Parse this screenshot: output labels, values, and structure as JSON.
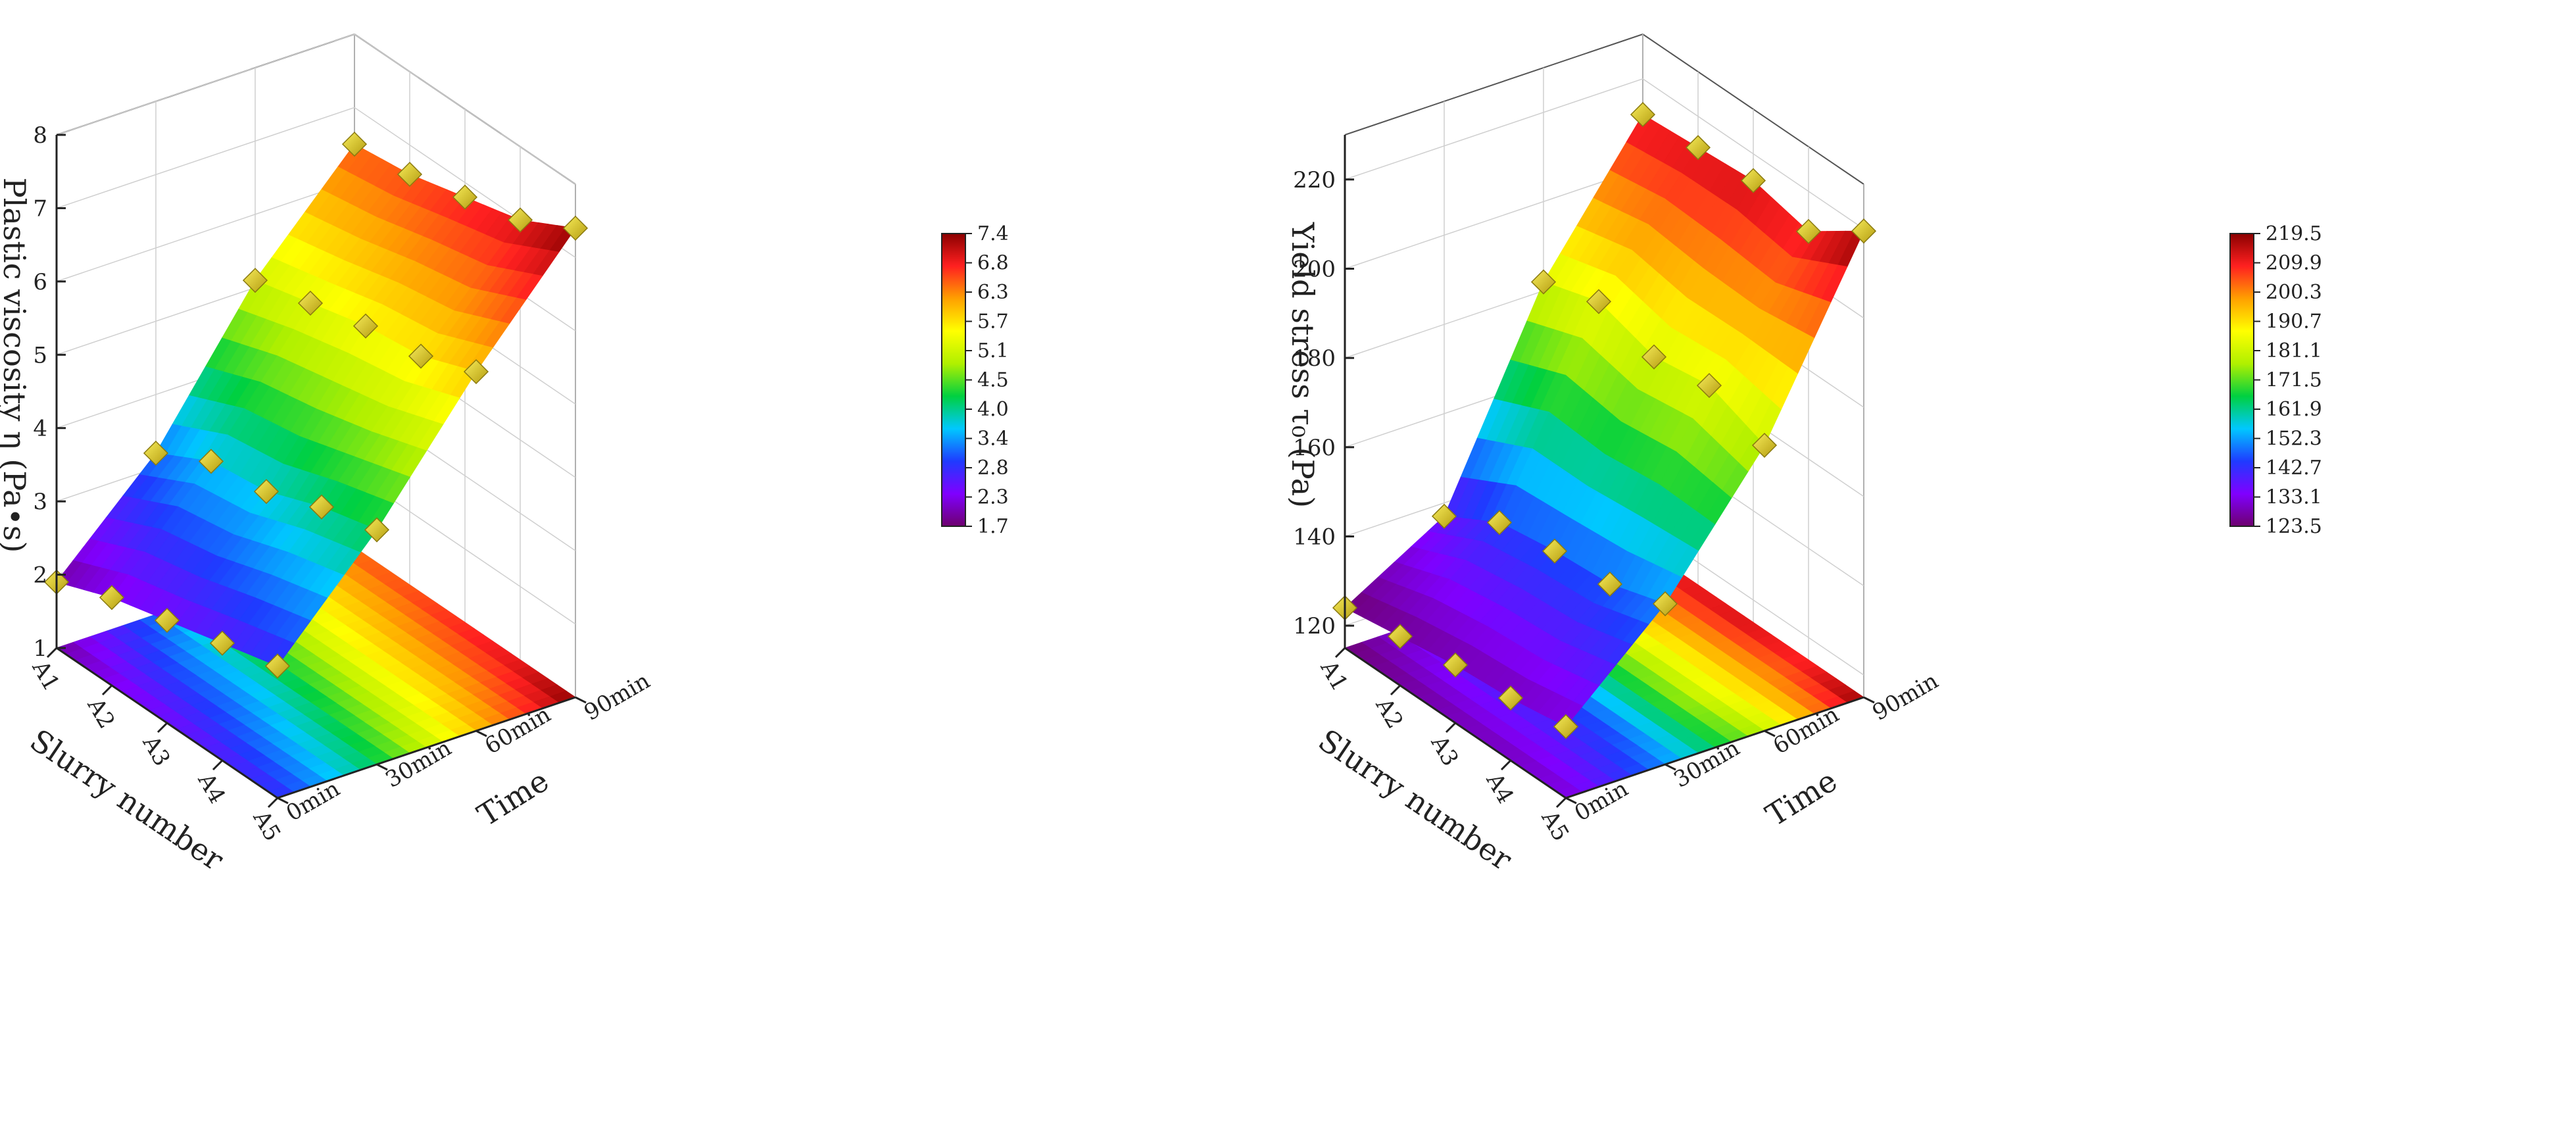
{
  "chart_data": [
    {
      "type": "surface3d",
      "zlabel": "Plastic viscosity η (Pa•s)",
      "xlabel": "Slurry number",
      "ylabel": "Time",
      "categories": [
        "A1",
        "A2",
        "A3",
        "A4",
        "A5"
      ],
      "times": [
        "0min",
        "30min",
        "60min",
        "90min"
      ],
      "zlim": [
        1,
        8
      ],
      "zticks": [
        "1",
        "2",
        "3",
        "4",
        "5",
        "6",
        "7",
        "8"
      ],
      "grid": true,
      "colorbar": {
        "ticks": [
          "7.4",
          "6.8",
          "6.3",
          "5.7",
          "5.1",
          "4.5",
          "4.0",
          "3.4",
          "2.8",
          "2.3",
          "1.7"
        ],
        "range": [
          1.7,
          7.4
        ],
        "placement": "right"
      },
      "series": [
        {
          "name": "0min",
          "values": [
            1.9,
            2.2,
            2.4,
            2.6,
            2.8
          ]
        },
        {
          "name": "30min",
          "values": [
            3.2,
            3.6,
            3.7,
            4.0,
            4.2
          ]
        },
        {
          "name": "60min",
          "values": [
            5.1,
            5.3,
            5.5,
            5.6,
            5.9
          ]
        },
        {
          "name": "90min",
          "values": [
            6.5,
            6.6,
            6.8,
            7.0,
            7.4
          ]
        }
      ]
    },
    {
      "type": "surface3d",
      "zlabel": "Yield stress τ₀ (Pa)",
      "xlabel": "Slurry number",
      "ylabel": "Time",
      "categories": [
        "A1",
        "A2",
        "A3",
        "A4",
        "A5"
      ],
      "times": [
        "0min",
        "30min",
        "60min",
        "90min"
      ],
      "zlim": [
        115,
        230
      ],
      "zticks": [
        "120",
        "140",
        "160",
        "180",
        "200",
        "220"
      ],
      "grid": true,
      "colorbar": {
        "ticks": [
          "219.5",
          "209.9",
          "200.3",
          "190.7",
          "181.1",
          "171.5",
          "161.9",
          "152.3",
          "142.7",
          "133.1",
          "123.5"
        ],
        "range": [
          123.5,
          219.5
        ],
        "placement": "right"
      },
      "series": [
        {
          "name": "0min",
          "values": [
            124,
            126,
            128,
            129,
            131
          ]
        },
        {
          "name": "30min",
          "values": [
            137,
            144,
            146,
            147,
            151
          ]
        },
        {
          "name": "60min",
          "values": [
            182,
            186,
            182,
            184,
            179
          ]
        },
        {
          "name": "90min",
          "values": [
            212,
            213,
            214,
            211,
            219.5
          ]
        }
      ]
    }
  ],
  "colors": {
    "scale": [
      "#6e006e",
      "#8000ff",
      "#1f3bff",
      "#00c8ff",
      "#00d040",
      "#b0f000",
      "#ffff00",
      "#ffa000",
      "#ff2020",
      "#8b0000"
    ],
    "marker_light": "#f7ec5a",
    "marker_dark": "#b49c10",
    "axis": "#222222",
    "grid": "#cfcfcf"
  }
}
